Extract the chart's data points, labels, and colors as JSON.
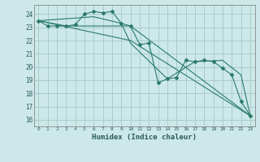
{
  "xlabel": "Humidex (Indice chaleur)",
  "background_color": "#cce8e8",
  "grid_color": "#aacccc",
  "line_color": "#2a7a6a",
  "xlim": [
    -0.5,
    23.5
  ],
  "ylim": [
    15.5,
    24.7
  ],
  "yticks": [
    16,
    17,
    18,
    19,
    20,
    21,
    22,
    23,
    24
  ],
  "xticks": [
    0,
    1,
    2,
    3,
    4,
    5,
    6,
    7,
    8,
    9,
    10,
    11,
    12,
    13,
    14,
    15,
    16,
    17,
    18,
    19,
    20,
    21,
    22,
    23
  ],
  "series": [
    {
      "x": [
        0,
        1,
        2,
        3,
        4,
        5,
        6,
        7,
        8,
        9,
        10,
        11,
        12,
        13,
        14,
        15,
        16,
        17,
        18,
        19,
        20,
        21,
        22,
        23
      ],
      "y": [
        23.5,
        23.1,
        23.1,
        23.1,
        23.2,
        24.0,
        24.2,
        24.1,
        24.2,
        23.3,
        23.1,
        21.7,
        21.8,
        18.8,
        19.1,
        19.2,
        20.5,
        20.4,
        20.5,
        20.4,
        19.9,
        19.4,
        17.4,
        16.3
      ],
      "marker": true
    },
    {
      "x": [
        0,
        3,
        10,
        23
      ],
      "y": [
        23.5,
        23.1,
        23.1,
        16.3
      ],
      "marker": false
    },
    {
      "x": [
        0,
        6,
        9,
        10,
        14,
        17,
        20,
        22,
        23
      ],
      "y": [
        23.5,
        23.8,
        23.3,
        21.8,
        19.1,
        20.4,
        20.5,
        19.4,
        16.3
      ],
      "marker": false
    },
    {
      "x": [
        0,
        10,
        23
      ],
      "y": [
        23.5,
        22.0,
        16.3
      ],
      "marker": false
    }
  ]
}
